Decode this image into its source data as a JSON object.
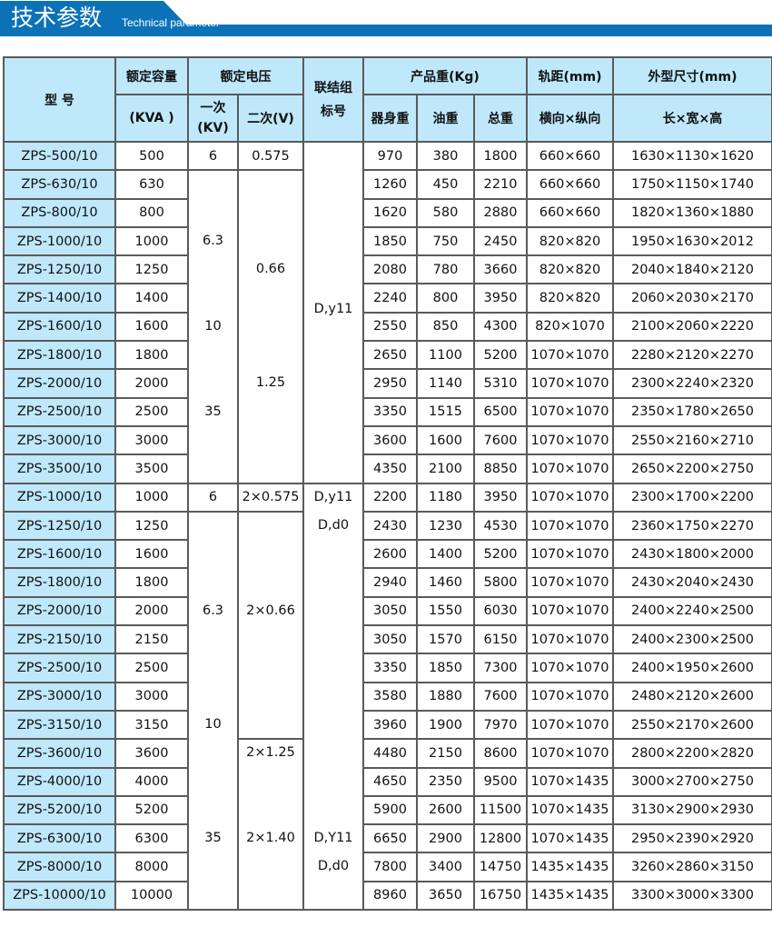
{
  "header": {
    "title": "技术参数",
    "subtitle": "Technical parameter",
    "color": "#0c72b8"
  },
  "table": {
    "headers": {
      "model": "型 号",
      "capacity": "额定容量",
      "capacity_unit": "(KVA )",
      "voltage": "额定电压",
      "primary": "一次\n(KV)",
      "secondary": "二次(V)",
      "connection": "联结组\n标号",
      "weight": "产品重(Kg)",
      "body_weight": "器身重",
      "oil_weight": "油重",
      "total_weight": "总重",
      "gauge": "轨距(mm)",
      "gauge_sub": "横向×纵向",
      "dims": "外型尺寸(mm)",
      "dims_sub": "长×宽×高"
    },
    "header_bg": "#bfe8fb",
    "rows": [
      [
        "ZPS-500/10",
        "500",
        "970",
        "380",
        "1800",
        "660×660",
        "1630×1130×1620"
      ],
      [
        "ZPS-630/10",
        "630",
        "1260",
        "450",
        "2210",
        "660×660",
        "1750×1150×1740"
      ],
      [
        "ZPS-800/10",
        "800",
        "1620",
        "580",
        "2880",
        "660×660",
        "1820×1360×1880"
      ],
      [
        "ZPS-1000/10",
        "1000",
        "1850",
        "750",
        "2450",
        "820×820",
        "1950×1630×2012"
      ],
      [
        "ZPS-1250/10",
        "1250",
        "2080",
        "780",
        "3660",
        "820×820",
        "2040×1840×2120"
      ],
      [
        "ZPS-1400/10",
        "1400",
        "2240",
        "800",
        "3950",
        "820×820",
        "2060×2030×2170"
      ],
      [
        "ZPS-1600/10",
        "1600",
        "2550",
        "850",
        "4300",
        "820×1070",
        "2100×2060×2220"
      ],
      [
        "ZPS-1800/10",
        "1800",
        "2650",
        "1100",
        "5200",
        "1070×1070",
        "2280×2120×2270"
      ],
      [
        "ZPS-2000/10",
        "2000",
        "2950",
        "1140",
        "5310",
        "1070×1070",
        "2300×2240×2320"
      ],
      [
        "ZPS-2500/10",
        "2500",
        "3350",
        "1515",
        "6500",
        "1070×1070",
        "2350×1780×2650"
      ],
      [
        "ZPS-3000/10",
        "3000",
        "3600",
        "1600",
        "7600",
        "1070×1070",
        "2550×2160×2710"
      ],
      [
        "ZPS-3500/10",
        "3500",
        "4350",
        "2100",
        "8850",
        "1070×1070",
        "2650×2200×2750"
      ],
      [
        "ZPS-1000/10",
        "1000",
        "2200",
        "1180",
        "3950",
        "1070×1070",
        "2300×1700×2200"
      ],
      [
        "ZPS-1250/10",
        "1250",
        "2430",
        "1230",
        "4530",
        "1070×1070",
        "2360×1750×2270"
      ],
      [
        "ZPS-1600/10",
        "1600",
        "2600",
        "1400",
        "5200",
        "1070×1070",
        "2430×1800×2000"
      ],
      [
        "ZPS-1800/10",
        "1800",
        "2940",
        "1460",
        "5800",
        "1070×1070",
        "2430×2040×2430"
      ],
      [
        "ZPS-2000/10",
        "2000",
        "3050",
        "1550",
        "6030",
        "1070×1070",
        "2400×2240×2500"
      ],
      [
        "ZPS-2150/10",
        "2150",
        "3050",
        "1570",
        "6150",
        "1070×1070",
        "2400×2300×2500"
      ],
      [
        "ZPS-2500/10",
        "2500",
        "3350",
        "1850",
        "7300",
        "1070×1070",
        "2400×1950×2600"
      ],
      [
        "ZPS-3000/10",
        "3000",
        "3580",
        "1880",
        "7600",
        "1070×1070",
        "2480×2120×2600"
      ],
      [
        "ZPS-3150/10",
        "3150",
        "3960",
        "1900",
        "7970",
        "1070×1070",
        "2550×2170×2600"
      ],
      [
        "ZPS-3600/10",
        "3600",
        "4480",
        "2150",
        "8600",
        "1070×1070",
        "2800×2200×2820"
      ],
      [
        "ZPS-4000/10",
        "4000",
        "4650",
        "2350",
        "9500",
        "1070×1435",
        "3000×2700×2750"
      ],
      [
        "ZPS-5200/10",
        "5200",
        "5900",
        "2600",
        "11500",
        "1070×1435",
        "3130×2900×2930"
      ],
      [
        "ZPS-6300/10",
        "6300",
        "6650",
        "2900",
        "12800",
        "1070×1435",
        "2950×2390×2920"
      ],
      [
        "ZPS-8000/10",
        "8000",
        "7800",
        "3400",
        "14750",
        "1435×1435",
        "3260×2860×3150"
      ],
      [
        "ZPS-10000/10",
        "10000",
        "8960",
        "3650",
        "16750",
        "1435×1435",
        "3300×3000×3300"
      ]
    ],
    "merged": {
      "primary": [
        {
          "start": 0,
          "span": 1,
          "labels": [
            {
              "text": "6",
              "row": 0
            }
          ]
        },
        {
          "start": 1,
          "span": 11,
          "labels": [
            {
              "text": "6.3",
              "row": 2
            },
            {
              "text": "10",
              "row": 5
            },
            {
              "text": "35",
              "row": 8
            }
          ]
        },
        {
          "start": 12,
          "span": 1,
          "labels": [
            {
              "text": "6",
              "row": 0
            }
          ]
        },
        {
          "start": 13,
          "span": 14,
          "labels": [
            {
              "text": "6.3",
              "row": 3
            },
            {
              "text": "10",
              "row": 7
            },
            {
              "text": "35",
              "row": 11
            }
          ]
        }
      ],
      "secondary": [
        {
          "start": 0,
          "span": 1,
          "labels": [
            {
              "text": "0.575",
              "row": 0
            }
          ]
        },
        {
          "start": 1,
          "span": 11,
          "labels": [
            {
              "text": "0.66",
              "row": 3
            },
            {
              "text": "1.25",
              "row": 7
            }
          ]
        },
        {
          "start": 12,
          "span": 1,
          "labels": [
            {
              "text": "2×0.575",
              "row": 0
            }
          ]
        },
        {
          "start": 13,
          "span": 8,
          "labels": [
            {
              "text": "2×0.66",
              "row": 3
            }
          ]
        },
        {
          "start": 21,
          "span": 6,
          "labels": [
            {
              "text": "2×1.25",
              "row": 0
            },
            {
              "text": "2×1.40",
              "row": 3
            }
          ]
        }
      ],
      "connection": [
        {
          "start": 0,
          "span": 12,
          "labels": [
            {
              "text": "D,y11",
              "row": 5.4
            }
          ]
        },
        {
          "start": 12,
          "span": 15,
          "labels": [
            {
              "text": "D,y11",
              "row": 0
            },
            {
              "text": "D,d0",
              "row": 1
            },
            {
              "text": "D,Y11",
              "row": 12
            },
            {
              "text": "D,d0",
              "row": 13
            }
          ]
        }
      ]
    }
  }
}
